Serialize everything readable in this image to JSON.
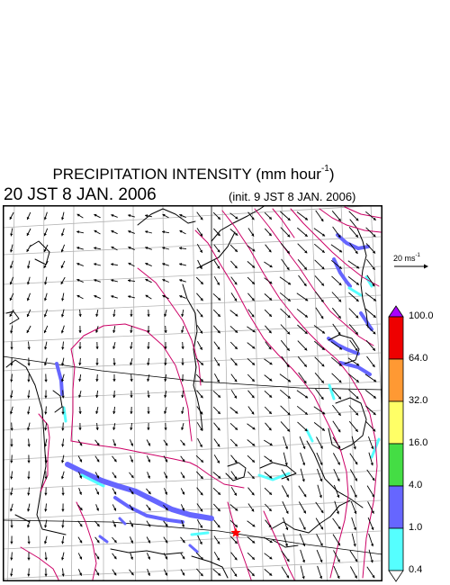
{
  "title": {
    "text": "PRECIPITATION INTENSITY (mm hour",
    "exponent": "-1",
    "close": ")"
  },
  "valid_time": "20 JST 8 JAN. 2006",
  "init_time": "(init. 9 JST 8 JAN. 2006)",
  "reference_vector": {
    "label": "20 ms",
    "exponent": "-1"
  },
  "colorbar": {
    "labels": [
      "100.0",
      "64.0",
      "32.0",
      "16.0",
      "4.0",
      "1.0",
      "0.4"
    ],
    "colors": [
      "#aa00ff",
      "#ee0000",
      "#ff9933",
      "#ffff66",
      "#44dd44",
      "#6666ff",
      "#55ffff",
      "#ffffff"
    ]
  },
  "map_colors": {
    "frame": "#000000",
    "coast": "#000000",
    "grid": "#b4b4b4",
    "contour": "#cc0066",
    "wind": "#000000",
    "marker": "#ff0000",
    "light_precip": "#55ffff",
    "moderate_precip": "#6666ff"
  },
  "icons": {
    "marker": "red-star-icon",
    "wind": "wind-arrow-icon"
  }
}
